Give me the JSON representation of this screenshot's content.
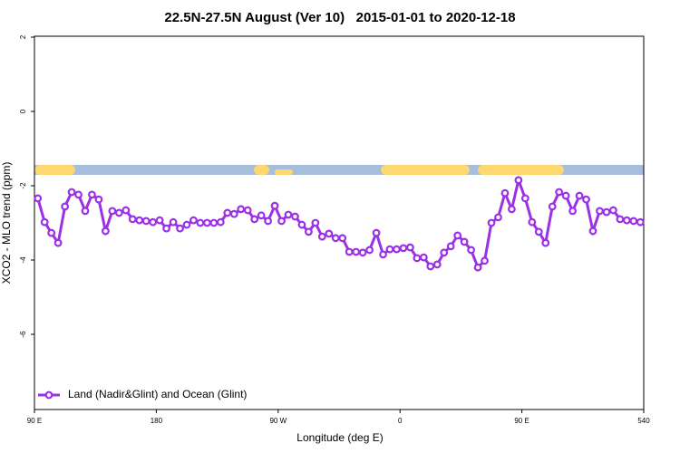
{
  "chart_data": {
    "type": "line",
    "title": "22.5N-27.5N August (Ver 10)   2015-01-01 to 2020-12-18",
    "xlabel": "Longitude (deg E)",
    "ylabel": "XCO2 - MLO trend (ppm)",
    "xlim": [
      90,
      540
    ],
    "ylim": [
      -8,
      2
    ],
    "xticks": [
      {
        "value": 90,
        "label": "90 E"
      },
      180,
      {
        "value": 270,
        "label": "90 W"
      },
      {
        "value": 360,
        "label": "0"
      },
      {
        "value": 450,
        "label": "90 E"
      },
      540
    ],
    "yticks": [
      2,
      0,
      -2,
      -4,
      -6
    ],
    "legend": "bottom-left",
    "x": [
      92.5,
      97.5,
      102.5,
      107.5,
      112.5,
      117.5,
      122.5,
      127.5,
      132.5,
      137.5,
      142.5,
      147.5,
      152.5,
      157.5,
      162.5,
      167.5,
      172.5,
      177.5,
      182.5,
      187.5,
      192.5,
      197.5,
      202.5,
      207.5,
      212.5,
      217.5,
      222.5,
      227.5,
      232.5,
      237.5,
      242.5,
      247.5,
      252.5,
      257.5,
      262.5,
      267.5,
      272.5,
      277.5,
      282.5,
      287.5,
      292.5,
      297.5,
      302.5,
      307.5,
      312.5,
      317.5,
      322.5,
      327.5,
      332.5,
      337.5,
      342.5,
      347.5,
      352.5,
      357.5,
      362.5,
      367.5,
      372.5,
      377.5,
      382.5,
      387.5,
      392.5,
      397.5,
      402.5,
      407.5,
      412.5,
      417.5,
      422.5,
      427.5,
      432.5,
      437.5,
      442.5,
      447.5,
      452.5,
      457.5,
      462.5,
      467.5,
      472.5,
      477.5,
      482.5,
      487.5,
      492.5,
      497.5,
      502.5,
      507.5,
      512.5,
      517.5,
      522.5,
      527.5,
      532.5,
      537.5
    ],
    "series": [
      {
        "name": "Land (Nadir&Glint) and Ocean (Glint)",
        "color": "#9b30e6",
        "values": [
          -2.34,
          -2.98,
          -3.27,
          -3.54,
          -2.56,
          -2.17,
          -2.24,
          -2.68,
          -2.24,
          -2.37,
          -3.22,
          -2.68,
          -2.73,
          -2.66,
          -2.9,
          -2.93,
          -2.95,
          -2.98,
          -2.93,
          -3.15,
          -2.98,
          -3.15,
          -3.05,
          -2.93,
          -3.0,
          -3.0,
          -3.0,
          -2.98,
          -2.73,
          -2.76,
          -2.63,
          -2.66,
          -2.9,
          -2.8,
          -2.95,
          -2.54,
          -2.95,
          -2.78,
          -2.83,
          -3.05,
          -3.24,
          -3.0,
          -3.37,
          -3.29,
          -3.41,
          -3.41,
          -3.78,
          -3.78,
          -3.8,
          -3.73,
          -3.27,
          -3.85,
          -3.71,
          -3.71,
          -3.68,
          -3.66,
          -3.95,
          -3.93,
          -4.17,
          -4.12,
          -3.8,
          -3.63,
          -3.34,
          -3.51,
          -3.73,
          -4.2,
          -4.02,
          -3.0,
          -2.85,
          -2.2,
          -2.63,
          -1.85,
          -2.34,
          -2.98,
          -3.24,
          -3.54,
          -2.56,
          -2.17,
          -2.27,
          -2.68,
          -2.27,
          -2.37,
          -3.22,
          -2.68,
          -2.71,
          -2.66,
          -2.9,
          -2.93,
          -2.95,
          -2.98
        ]
      }
    ]
  }
}
